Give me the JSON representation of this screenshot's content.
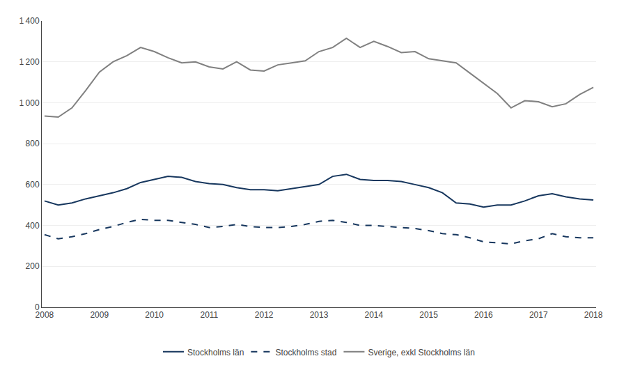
{
  "chart_data": {
    "type": "line",
    "x": [
      2008,
      2008.25,
      2008.5,
      2008.75,
      2009,
      2009.25,
      2009.5,
      2009.75,
      2010,
      2010.25,
      2010.5,
      2010.75,
      2011,
      2011.25,
      2011.5,
      2011.75,
      2012,
      2012.25,
      2012.5,
      2012.75,
      2013,
      2013.25,
      2013.5,
      2013.75,
      2014,
      2014.25,
      2014.5,
      2014.75,
      2015,
      2015.25,
      2015.5,
      2015.75,
      2016,
      2016.25,
      2016.5,
      2016.75,
      2017,
      2017.25,
      2017.5,
      2017.75,
      2018
    ],
    "series": [
      {
        "name": "Stockholms län",
        "color": "#17375e",
        "line_style": "solid",
        "values": [
          520,
          500,
          510,
          530,
          545,
          560,
          580,
          610,
          625,
          640,
          635,
          615,
          605,
          600,
          585,
          575,
          575,
          570,
          580,
          590,
          600,
          640,
          650,
          625,
          620,
          620,
          615,
          600,
          585,
          560,
          510,
          505,
          490,
          500,
          500,
          520,
          545,
          555,
          540,
          530,
          525
        ]
      },
      {
        "name": "Stockholms stad",
        "color": "#17375e",
        "line_style": "dashed",
        "values": [
          355,
          335,
          345,
          360,
          380,
          395,
          415,
          430,
          425,
          425,
          415,
          405,
          390,
          395,
          405,
          395,
          390,
          390,
          395,
          405,
          420,
          425,
          415,
          400,
          400,
          395,
          390,
          385,
          375,
          360,
          355,
          340,
          320,
          315,
          310,
          325,
          335,
          360,
          345,
          340,
          340
        ]
      },
      {
        "name": "Sverige, exkl Stockholms län",
        "color": "#808080",
        "line_style": "solid",
        "values": [
          935,
          930,
          975,
          1060,
          1150,
          1200,
          1230,
          1270,
          1250,
          1220,
          1195,
          1200,
          1175,
          1165,
          1200,
          1160,
          1155,
          1185,
          1195,
          1205,
          1250,
          1270,
          1315,
          1270,
          1300,
          1275,
          1245,
          1250,
          1215,
          1205,
          1195,
          1145,
          1095,
          1045,
          975,
          1010,
          1005,
          980,
          995,
          1040,
          1075
        ]
      }
    ],
    "xlim": [
      2007.95,
      2018.05
    ],
    "xticks": [
      2008,
      2009,
      2010,
      2011,
      2012,
      2013,
      2014,
      2015,
      2016,
      2017,
      2018
    ],
    "ylim": [
      0,
      1400
    ],
    "yticks": [
      0,
      200,
      400,
      600,
      800,
      {
        "value": 1000,
        "label": "1 000"
      },
      {
        "value": 1200,
        "label": "1 200"
      },
      {
        "value": 1400,
        "label": "1 400"
      }
    ],
    "grid": true,
    "legend": "bottom"
  }
}
